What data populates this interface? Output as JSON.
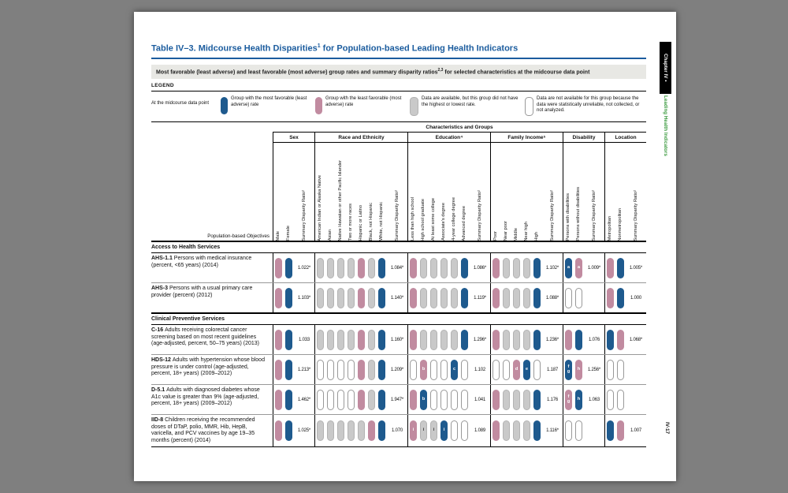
{
  "page": {
    "title": {
      "prefix": "Table IV–3. Midcourse Health Disparities",
      "sup": "1",
      "suffix": " for Population-based Leading Health Indicators"
    },
    "subtitle": {
      "prefix": "Most favorable (least adverse) and least favorable (most adverse) group rates and summary disparity ratios",
      "sup": "2,3",
      "suffix": " for selected characteristics at the midcourse data point"
    },
    "sidebar": {
      "chapter": "Chapter IV •",
      "chapter_title": "Leading Health Indicators"
    },
    "page_number": "IV-17"
  },
  "legend": {
    "label": "LEGEND",
    "lead": "At the midcourse data point",
    "items": [
      {
        "swatch": "blue",
        "text": "Group with the most favorable (least adverse) rate"
      },
      {
        "swatch": "pink",
        "text": "Group with the least favorable (most adverse) rate"
      },
      {
        "swatch": "gray",
        "text": "Data are available, but this group did not have the highest or lowest rate."
      },
      {
        "swatch": "white",
        "text": "Data are not available for this group because the data were statistically unreliable, not collected, or not analyzed."
      }
    ]
  },
  "colors": {
    "blue": "#1e5a8e",
    "pink": "#c18ba0",
    "gray": "#c9c9c9",
    "blue_title": "#1b5c9e",
    "green": "#3d9b41"
  },
  "table": {
    "header": {
      "span_label": "Characteristics and Groups",
      "row_label": "Population-based Objectives"
    },
    "groups": [
      {
        "id": "sex",
        "label": "Sex",
        "columns": [
          "Male",
          "Female",
          "Summary Disparity Ratio²"
        ]
      },
      {
        "id": "race",
        "label": "Race and Ethnicity",
        "columns": [
          "American Indian or Alaska Native",
          "Asian",
          "Native Hawaiian or other Pacific Islander",
          "Two or more races",
          "Hispanic or Latino",
          "Black, not Hispanic",
          "White, not Hispanic",
          "Summary Disparity Ratio²"
        ]
      },
      {
        "id": "education",
        "label": "Education⁴",
        "columns": [
          "Less than high school",
          "High school graduate",
          "At least some college",
          "Associate's degree",
          "4-year college degree",
          "Advanced degree",
          "Summary Disparity Ratio²"
        ]
      },
      {
        "id": "income",
        "label": "Family Income⁵",
        "columns": [
          "Poor",
          "Near poor",
          "Middle",
          "Near high",
          "High",
          "Summary Disparity Ratio²"
        ]
      },
      {
        "id": "disability",
        "label": "Disability",
        "columns": [
          "Persons with disabilities",
          "Persons without disabilities",
          "Summary Disparity Ratio²"
        ]
      },
      {
        "id": "location",
        "label": "Location",
        "columns": [
          "Metropolitan",
          "Nonmetropolitan",
          "Summary Disparity Ratio²"
        ]
      }
    ],
    "sections": [
      {
        "title": "Access to Health Services",
        "rows": [
          {
            "id": "AHS-1.1",
            "code": "AHS-1.1",
            "label": "Persons with medical insurance (percent, <65 years) (2014)",
            "cells": {
              "sex": [
                "P",
                "B"
              ],
              "race": [
                "G",
                "G",
                "G",
                "G",
                "P",
                "G",
                "B"
              ],
              "education": [
                "P",
                "G",
                "G",
                "G",
                "G",
                "B"
              ],
              "income": [
                "P",
                "G",
                "G",
                "G",
                "B"
              ],
              "disability": [
                "B:a",
                "P:a"
              ],
              "location": [
                "P",
                "B"
              ]
            },
            "ratios": {
              "sex": "1.022*",
              "race": "1.084*",
              "education": "1.086*",
              "income": "1.102*",
              "disability": "1.009*",
              "location": "1.005*"
            }
          },
          {
            "id": "AHS-3",
            "code": "AHS-3",
            "label": "Persons with a usual primary care provider (percent) (2012)",
            "cells": {
              "sex": [
                "P",
                "B"
              ],
              "race": [
                "G",
                "G",
                "G",
                "G",
                "P",
                "G",
                "B"
              ],
              "education": [
                "P",
                "G",
                "G",
                "G",
                "G",
                "B"
              ],
              "income": [
                "P",
                "G",
                "G",
                "G",
                "B"
              ],
              "disability": [
                "W",
                "W"
              ],
              "location": [
                "P",
                "B"
              ]
            },
            "ratios": {
              "sex": "1.103*",
              "race": "1.140*",
              "education": "1.119*",
              "income": "1.088*",
              "disability": "",
              "location": "1.000"
            }
          }
        ]
      },
      {
        "title": "Clinical Preventive Services",
        "rows": [
          {
            "id": "C-16",
            "code": "C-16",
            "label": "Adults receiving colorectal cancer screening based on most recent guidelines (age-adjusted, percent, 50–75 years) (2013)",
            "cells": {
              "sex": [
                "P",
                "B"
              ],
              "race": [
                "G",
                "G",
                "G",
                "G",
                "P",
                "G",
                "B"
              ],
              "education": [
                "P",
                "G",
                "G",
                "G",
                "G",
                "B"
              ],
              "income": [
                "P",
                "G",
                "G",
                "G",
                "B"
              ],
              "disability": [
                "P",
                "B"
              ],
              "location": [
                "B",
                "P"
              ]
            },
            "ratios": {
              "sex": "1.033",
              "race": "1.160*",
              "education": "1.296*",
              "income": "1.236*",
              "disability": "1.076",
              "location": "1.068*"
            }
          },
          {
            "id": "HDS-12",
            "code": "HDS-12",
            "label": "Adults with hypertension whose blood pressure is under control (age-adjusted, percent, 18+ years) (2009–2012)",
            "cells": {
              "sex": [
                "P",
                "B"
              ],
              "race": [
                "W",
                "W",
                "W",
                "W",
                "P",
                "G",
                "B"
              ],
              "education": [
                "W",
                "P:b",
                "W",
                "W",
                "B:c",
                "W"
              ],
              "income": [
                "W",
                "W",
                "P:d",
                "B:e",
                "W"
              ],
              "disability": [
                "B:fg",
                "P:h"
              ],
              "location": [
                "W",
                "W"
              ]
            },
            "ratios": {
              "sex": "1.213*",
              "race": "1.209*",
              "education": "1.102",
              "income": "1.187",
              "disability": "1.256*",
              "location": ""
            }
          },
          {
            "id": "D-5.1",
            "code": "D-5.1",
            "label": "Adults with diagnosed diabetes whose A1c value is greater than 9% (age-adjusted, percent, 18+ years) (2009–2012)",
            "cells": {
              "sex": [
                "P",
                "B"
              ],
              "race": [
                "W",
                "W",
                "W",
                "W",
                "P",
                "G",
                "B"
              ],
              "education": [
                "P",
                "B:b",
                "W",
                "W",
                "W",
                "W"
              ],
              "income": [
                "P",
                "G",
                "G",
                "G",
                "B"
              ],
              "disability": [
                "P:fg",
                "B:h"
              ],
              "location": [
                "W",
                "W"
              ]
            },
            "ratios": {
              "sex": "1.462*",
              "race": "1.947*",
              "education": "1.041",
              "income": "1.176",
              "disability": "1.063",
              "location": ""
            }
          },
          {
            "id": "IID-8",
            "code": "IID-8",
            "label": "Children receiving the recommended doses of DTaP, polio, MMR, Hib, HepB, varicella, and PCV vaccines by age 19–35 months (percent) (2014)",
            "cells": {
              "sex": [
                "P",
                "B"
              ],
              "race": [
                "G",
                "G",
                "G",
                "G",
                "G",
                "P",
                "B"
              ],
              "education": [
                "P:i",
                "G:i",
                "G:i",
                "B:i",
                "W",
                "W"
              ],
              "income": [
                "P",
                "G",
                "G",
                "G",
                "B"
              ],
              "disability": [
                "W",
                "W"
              ],
              "location": [
                "B",
                "P"
              ]
            },
            "ratios": {
              "sex": "1.025*",
              "race": "1.070",
              "education": "1.089",
              "income": "1.116*",
              "disability": "",
              "location": "1.007"
            }
          }
        ]
      }
    ]
  }
}
